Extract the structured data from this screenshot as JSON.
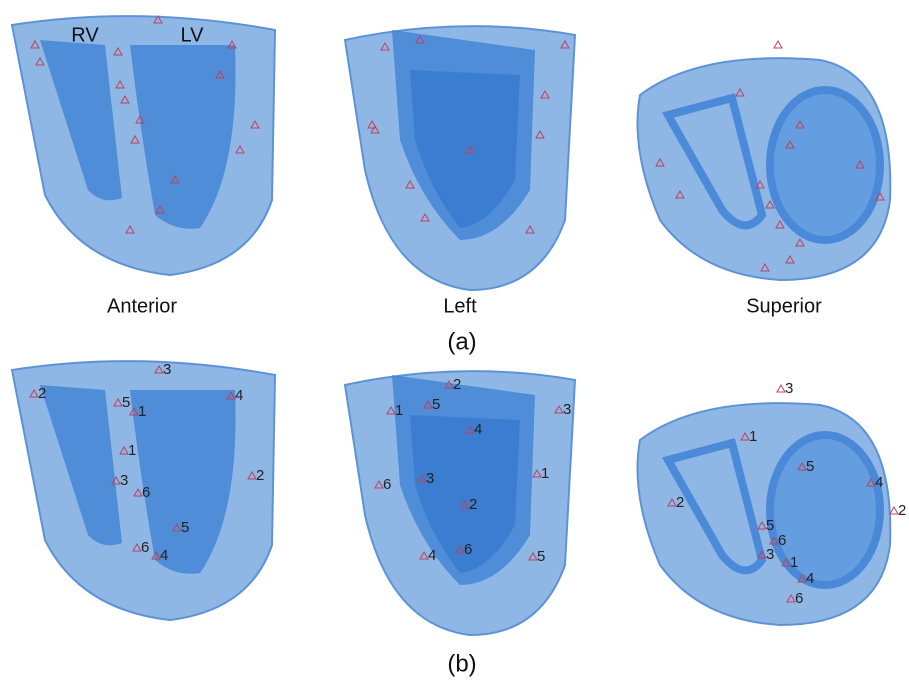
{
  "chambers": {
    "rv": "RV",
    "lv": "LV"
  },
  "views": [
    "Anterior",
    "Left",
    "Superior"
  ],
  "panels": [
    "(a)",
    "(b)"
  ],
  "markers_b": {
    "anterior": [
      "3",
      "2",
      "5",
      "1",
      "4",
      "1",
      "2",
      "3",
      "6",
      "5",
      "6",
      "4"
    ],
    "left": [
      "2",
      "1",
      "5",
      "3",
      "4",
      "3",
      "6",
      "1",
      "2",
      "4",
      "6",
      "5"
    ],
    "superior": [
      "3",
      "1",
      "5",
      "4",
      "2",
      "2",
      "5",
      "6",
      "3",
      "1",
      "4",
      "6"
    ]
  }
}
